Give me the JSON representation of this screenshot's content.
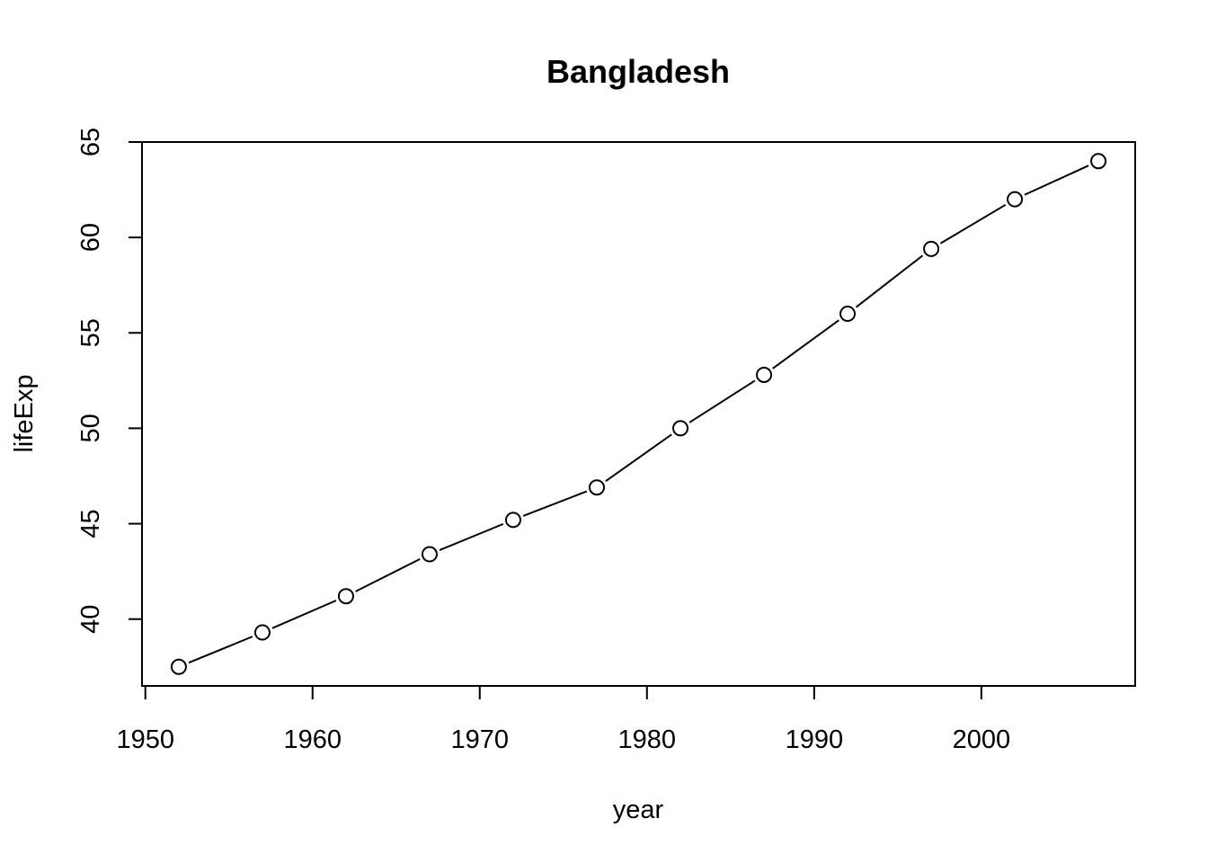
{
  "chart_data": {
    "type": "line",
    "title": "Bangladesh",
    "xlabel": "year",
    "ylabel": "lifeExp",
    "x": [
      1952,
      1957,
      1962,
      1967,
      1972,
      1977,
      1982,
      1987,
      1992,
      1997,
      2002,
      2007
    ],
    "series": [
      {
        "values": [
          37.5,
          39.3,
          41.2,
          43.4,
          45.2,
          46.9,
          50.0,
          52.8,
          56.0,
          59.4,
          62.0,
          64.0
        ]
      }
    ],
    "xlim": [
      1949.8,
      2009.2
    ],
    "ylim": [
      36.5,
      65.0
    ],
    "xticks": [
      1950,
      1960,
      1970,
      1980,
      1990,
      2000
    ],
    "yticks": [
      40,
      45,
      50,
      55,
      60,
      65
    ],
    "grid": false,
    "markers": "open-circle"
  }
}
